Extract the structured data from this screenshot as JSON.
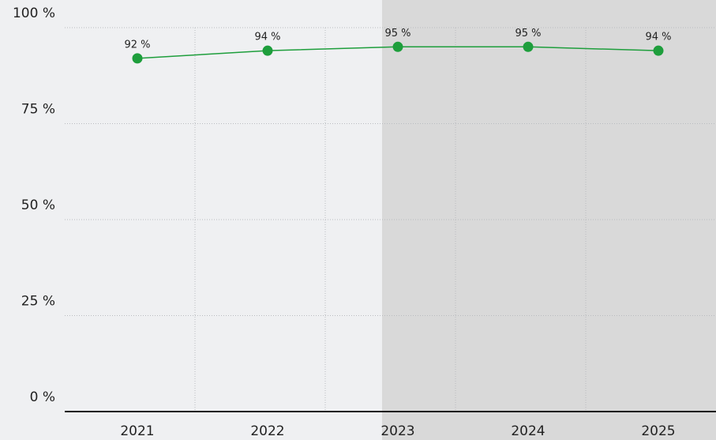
{
  "chart_data": {
    "type": "line",
    "categories": [
      "2021",
      "2022",
      "2023",
      "2024",
      "2025"
    ],
    "values": [
      92,
      94,
      95,
      95,
      94
    ],
    "value_labels": [
      "92 %",
      "94 %",
      "95 %",
      "95 %",
      "94 %"
    ],
    "color": "#1e9e3c",
    "ylim": [
      0,
      100
    ],
    "yticks": [
      {
        "value": 0,
        "label": "0 %"
      },
      {
        "value": 25,
        "label": "25 %"
      },
      {
        "value": 50,
        "label": "50 %"
      },
      {
        "value": 75,
        "label": "75 %"
      },
      {
        "value": 100,
        "label": "100 %"
      }
    ],
    "grid": true
  }
}
